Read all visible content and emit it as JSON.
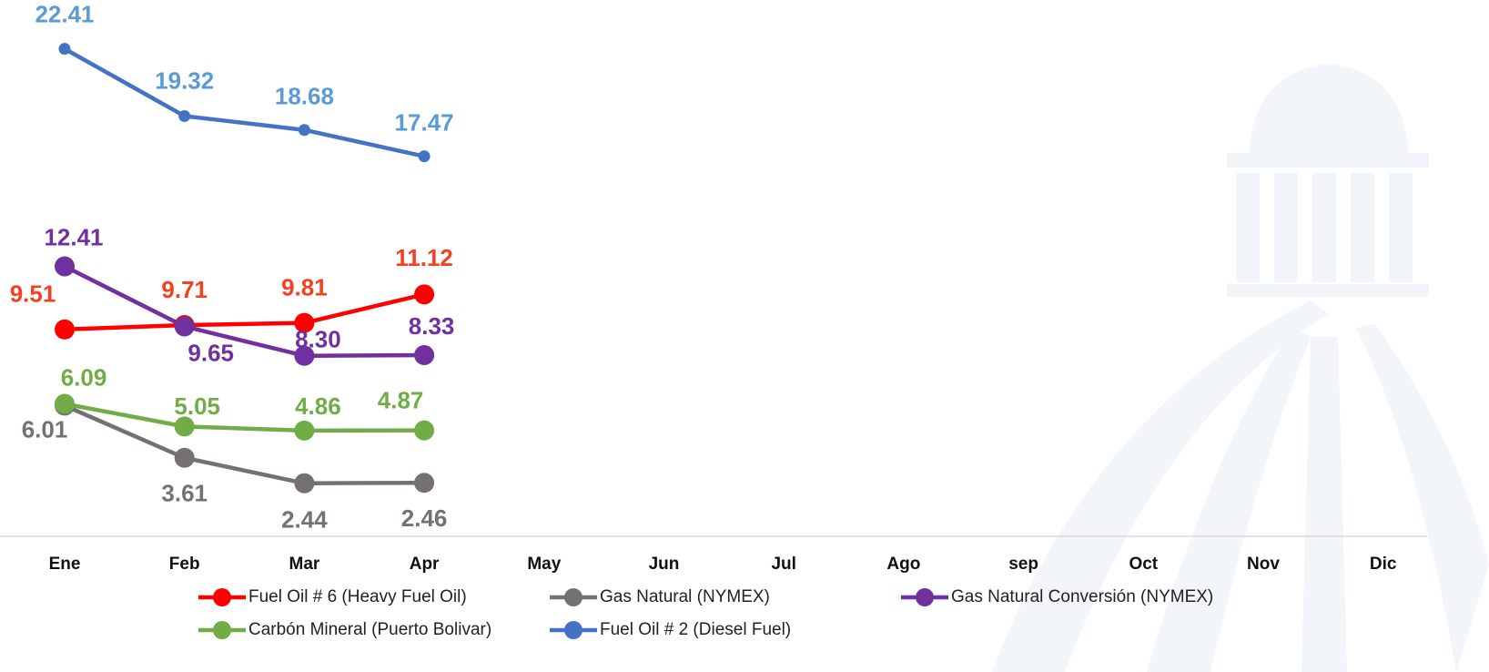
{
  "chart_data": {
    "type": "line",
    "categories": [
      "Ene",
      "Feb",
      "Mar",
      "Apr",
      "May",
      "Jun",
      "Jul",
      "Ago",
      "sep",
      "Oct",
      "Nov",
      "Dic"
    ],
    "ylim": [
      0,
      25
    ],
    "series": [
      {
        "name": "Fuel Oil # 6 (Heavy Fuel Oil)",
        "color": "#ff0000",
        "label_color": "#f5401f",
        "values": [
          9.51,
          9.71,
          9.81,
          11.12,
          null,
          null,
          null,
          null,
          null,
          null,
          null,
          null
        ],
        "value_labels": [
          "9.51",
          "9.71",
          "9.81",
          "11.12",
          null,
          null,
          null,
          null,
          null,
          null,
          null,
          null
        ]
      },
      {
        "name": "Gas Natural (NYMEX)",
        "color": "#767171",
        "label_color": "#767171",
        "values": [
          6.01,
          3.61,
          2.44,
          2.46,
          null,
          null,
          null,
          null,
          null,
          null,
          null,
          null
        ],
        "value_labels": [
          "6.01",
          "3.61",
          "2.44",
          "2.46",
          null,
          null,
          null,
          null,
          null,
          null,
          null,
          null
        ]
      },
      {
        "name": "Gas Natural Conversión (NYMEX)",
        "color": "#7030a0",
        "label_color": "#7030a0",
        "values": [
          12.41,
          9.65,
          8.3,
          8.33,
          null,
          null,
          null,
          null,
          null,
          null,
          null,
          null
        ],
        "value_labels": [
          "12.41",
          "9.65",
          "8.30",
          "8.33",
          null,
          null,
          null,
          null,
          null,
          null,
          null,
          null
        ]
      },
      {
        "name": "Carbón Mineral (Puerto Bolivar)",
        "color": "#70ad47",
        "label_color": "#70ad47",
        "values": [
          6.09,
          5.05,
          4.86,
          4.87,
          null,
          null,
          null,
          null,
          null,
          null,
          null,
          null
        ],
        "value_labels": [
          "6.09",
          "5.05",
          "4.86",
          "4.87",
          null,
          null,
          null,
          null,
          null,
          null,
          null,
          null
        ]
      },
      {
        "name": "Fuel Oil # 2 (Diesel Fuel)",
        "color": "#4472c4",
        "label_color": "#5b9bd5",
        "values": [
          22.41,
          19.32,
          18.68,
          17.47,
          null,
          null,
          null,
          null,
          null,
          null,
          null,
          null
        ],
        "value_labels": [
          "22.41",
          "19.32",
          "18.68",
          "17.47",
          null,
          null,
          null,
          null,
          null,
          null,
          null,
          null
        ]
      }
    ]
  }
}
